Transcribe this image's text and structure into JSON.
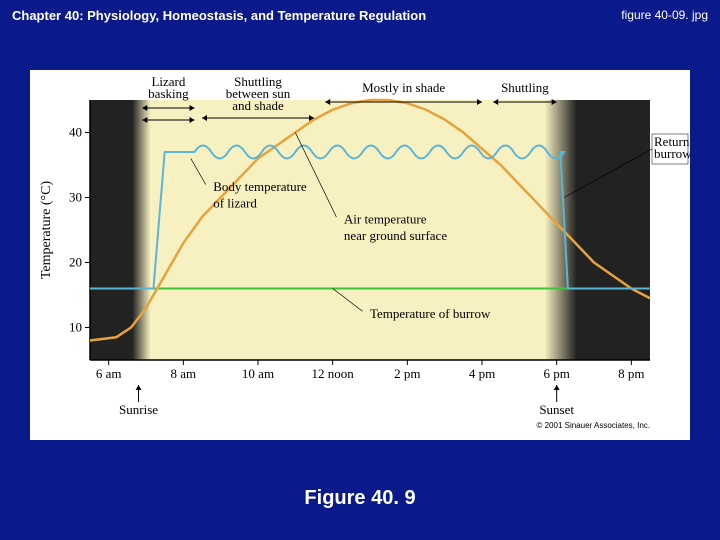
{
  "header": {
    "chapter_title": "Chapter 40: Physiology, Homeostasis, and Temperature Regulation",
    "filename": "figure 40-09. jpg"
  },
  "figure_caption": "Figure 40. 9",
  "chart": {
    "type": "line",
    "background_color": "#ffffff",
    "plot_bg_color": "#f7f0c0",
    "night_band_color": "#222222",
    "night_gradient_color": "#aaaaaa",
    "y_axis": {
      "label": "Temperature (°C)",
      "min": 5,
      "max": 45,
      "ticks": [
        10,
        20,
        30,
        40
      ],
      "tick_color": "#000000"
    },
    "x_axis": {
      "labels": [
        "6 am",
        "8 am",
        "10 am",
        "12 noon",
        "2 pm",
        "4 pm",
        "6 pm",
        "8 pm"
      ],
      "positions": [
        6,
        8,
        10,
        12,
        14,
        16,
        18,
        20
      ]
    },
    "series": {
      "burrow_temp": {
        "label": "Temperature of burrow",
        "color": "#3cc43c",
        "width": 2,
        "value": 16,
        "x_range": [
          5.5,
          20.5
        ]
      },
      "air_temp": {
        "label": "Air temperature near ground surface",
        "color": "#e8a23c",
        "width": 2.5,
        "points": [
          [
            5.5,
            8
          ],
          [
            6.2,
            8.5
          ],
          [
            6.6,
            10
          ],
          [
            7,
            13
          ],
          [
            7.5,
            18
          ],
          [
            8,
            23
          ],
          [
            8.5,
            27
          ],
          [
            9,
            30
          ],
          [
            9.5,
            33
          ],
          [
            10,
            36
          ],
          [
            10.5,
            38
          ],
          [
            11,
            40
          ],
          [
            11.5,
            42
          ],
          [
            12,
            43.5
          ],
          [
            12.5,
            44.5
          ],
          [
            13,
            45
          ],
          [
            13.5,
            45
          ],
          [
            14,
            44.5
          ],
          [
            14.5,
            43.5
          ],
          [
            15,
            42
          ],
          [
            15.5,
            40
          ],
          [
            16,
            37.5
          ],
          [
            16.5,
            35
          ],
          [
            17,
            32
          ],
          [
            17.5,
            29
          ],
          [
            18,
            26
          ],
          [
            18.5,
            23
          ],
          [
            19,
            20
          ],
          [
            19.5,
            18
          ],
          [
            20,
            16
          ],
          [
            20.5,
            14.5
          ]
        ]
      },
      "body_temp": {
        "label": "Body temperature of lizard",
        "color": "#5ab5d8",
        "width": 2,
        "baseline": 16,
        "emerge_x": 7.2,
        "active_level": 37,
        "wave_amplitude": 2,
        "wave_period": 0.9,
        "wave_start_x": 8.3,
        "wave_end_x": 17.5,
        "return_x": 18.1
      }
    },
    "annotations": {
      "lizard_basking": "Lizard basking",
      "shuttling1": "Shuttling between sun and shade",
      "mostly_shade": "Mostly in shade",
      "shuttling2": "Shuttling",
      "returns_burrow": "Returns to burrow",
      "sunrise": "Sunrise",
      "sunset": "Sunset"
    },
    "sun_events": {
      "sunrise_x": 6.8,
      "sunset_x": 18.0
    },
    "copyright": "© 2001 Sinauer Associates, Inc."
  },
  "page": {
    "bg_color": "#0a1a8a"
  }
}
